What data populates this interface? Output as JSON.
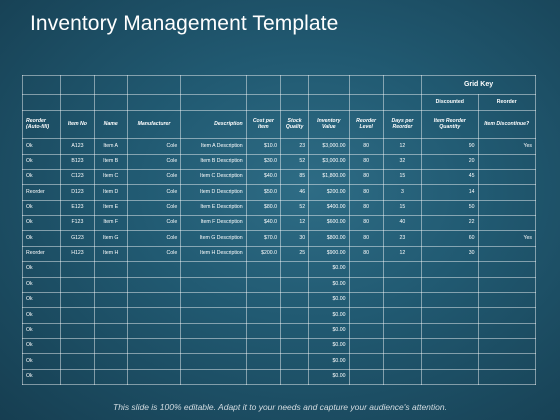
{
  "title": "Inventory Management Template",
  "grid_key": {
    "title": "Grid Key",
    "discounted": "Discounted",
    "reorder": "Reorder"
  },
  "headers": {
    "reorder": "Reorder (Auto-fill)",
    "item_no": "Item No",
    "name": "Name",
    "manufacturer": "Manufacturer",
    "description": "Description",
    "cost": "Cost per item",
    "stock": "Stock Quality",
    "inventory": "Inventory Value",
    "reorder_level": "Reorder Level",
    "days": "Days per Reorder",
    "item_reorder_qty": "Item Reorder Quantity",
    "discontinue": "Item Discontinue?"
  },
  "rows": [
    {
      "reorder": "Ok",
      "item_no": "A123",
      "name": "Item A",
      "manufacturer": "Cole",
      "description": "Item A Description",
      "cost": "$10.0",
      "stock": "23",
      "inventory": "$3,000.00",
      "reorder_level": "80",
      "days": "12",
      "qty": "90",
      "discontinue": "Yes"
    },
    {
      "reorder": "Ok",
      "item_no": "B123",
      "name": "Item B",
      "manufacturer": "Cole",
      "description": "Item B Description",
      "cost": "$30.0",
      "stock": "52",
      "inventory": "$3,000.00",
      "reorder_level": "80",
      "days": "32",
      "qty": "20",
      "discontinue": ""
    },
    {
      "reorder": "Ok",
      "item_no": "C123",
      "name": "Item C",
      "manufacturer": "Cole",
      "description": "Item C Description",
      "cost": "$40.0",
      "stock": "85",
      "inventory": "$1,800.00",
      "reorder_level": "80",
      "days": "15",
      "qty": "45",
      "discontinue": ""
    },
    {
      "reorder": "Reorder",
      "item_no": "D123",
      "name": "Item D",
      "manufacturer": "Cole",
      "description": "Item D Description",
      "cost": "$50.0",
      "stock": "46",
      "inventory": "$200.00",
      "reorder_level": "80",
      "days": "3",
      "qty": "14",
      "discontinue": ""
    },
    {
      "reorder": "Ok",
      "item_no": "E123",
      "name": "Item E",
      "manufacturer": "Cole",
      "description": "Item E Description",
      "cost": "$80.0",
      "stock": "52",
      "inventory": "$400.00",
      "reorder_level": "80",
      "days": "15",
      "qty": "50",
      "discontinue": ""
    },
    {
      "reorder": "Ok",
      "item_no": "F123",
      "name": "Item F",
      "manufacturer": "Cole",
      "description": "Item F Description",
      "cost": "$40.0",
      "stock": "12",
      "inventory": "$600.00",
      "reorder_level": "80",
      "days": "40",
      "qty": "22",
      "discontinue": ""
    },
    {
      "reorder": "Ok",
      "item_no": "G123",
      "name": "Item G",
      "manufacturer": "Cole",
      "description": "Item G Description",
      "cost": "$70.0",
      "stock": "30",
      "inventory": "$800.00",
      "reorder_level": "80",
      "days": "23",
      "qty": "60",
      "discontinue": "Yes"
    },
    {
      "reorder": "Reorder",
      "item_no": "H123",
      "name": "Item H",
      "manufacturer": "Cole",
      "description": "Item H Description",
      "cost": "$200.0",
      "stock": "25",
      "inventory": "$900.00",
      "reorder_level": "80",
      "days": "12",
      "qty": "30",
      "discontinue": ""
    },
    {
      "reorder": "Ok",
      "item_no": "",
      "name": "",
      "manufacturer": "",
      "description": "",
      "cost": "",
      "stock": "",
      "inventory": "$0.00",
      "reorder_level": "",
      "days": "",
      "qty": "",
      "discontinue": ""
    },
    {
      "reorder": "Ok",
      "item_no": "",
      "name": "",
      "manufacturer": "",
      "description": "",
      "cost": "",
      "stock": "",
      "inventory": "$0.00",
      "reorder_level": "",
      "days": "",
      "qty": "",
      "discontinue": ""
    },
    {
      "reorder": "Ok",
      "item_no": "",
      "name": "",
      "manufacturer": "",
      "description": "",
      "cost": "",
      "stock": "",
      "inventory": "$0.00",
      "reorder_level": "",
      "days": "",
      "qty": "",
      "discontinue": ""
    },
    {
      "reorder": "Ok",
      "item_no": "",
      "name": "",
      "manufacturer": "",
      "description": "",
      "cost": "",
      "stock": "",
      "inventory": "$0.00",
      "reorder_level": "",
      "days": "",
      "qty": "",
      "discontinue": ""
    },
    {
      "reorder": "Ok",
      "item_no": "",
      "name": "",
      "manufacturer": "",
      "description": "",
      "cost": "",
      "stock": "",
      "inventory": "$0.00",
      "reorder_level": "",
      "days": "",
      "qty": "",
      "discontinue": ""
    },
    {
      "reorder": "Ok",
      "item_no": "",
      "name": "",
      "manufacturer": "",
      "description": "",
      "cost": "",
      "stock": "",
      "inventory": "$0.00",
      "reorder_level": "",
      "days": "",
      "qty": "",
      "discontinue": ""
    },
    {
      "reorder": "Ok",
      "item_no": "",
      "name": "",
      "manufacturer": "",
      "description": "",
      "cost": "",
      "stock": "",
      "inventory": "$0.00",
      "reorder_level": "",
      "days": "",
      "qty": "",
      "discontinue": ""
    },
    {
      "reorder": "Ok",
      "item_no": "",
      "name": "",
      "manufacturer": "",
      "description": "",
      "cost": "",
      "stock": "",
      "inventory": "$0.00",
      "reorder_level": "",
      "days": "",
      "qty": "",
      "discontinue": ""
    }
  ],
  "footer": "This slide is 100% editable. Adapt it to your needs and capture your audience's attention."
}
